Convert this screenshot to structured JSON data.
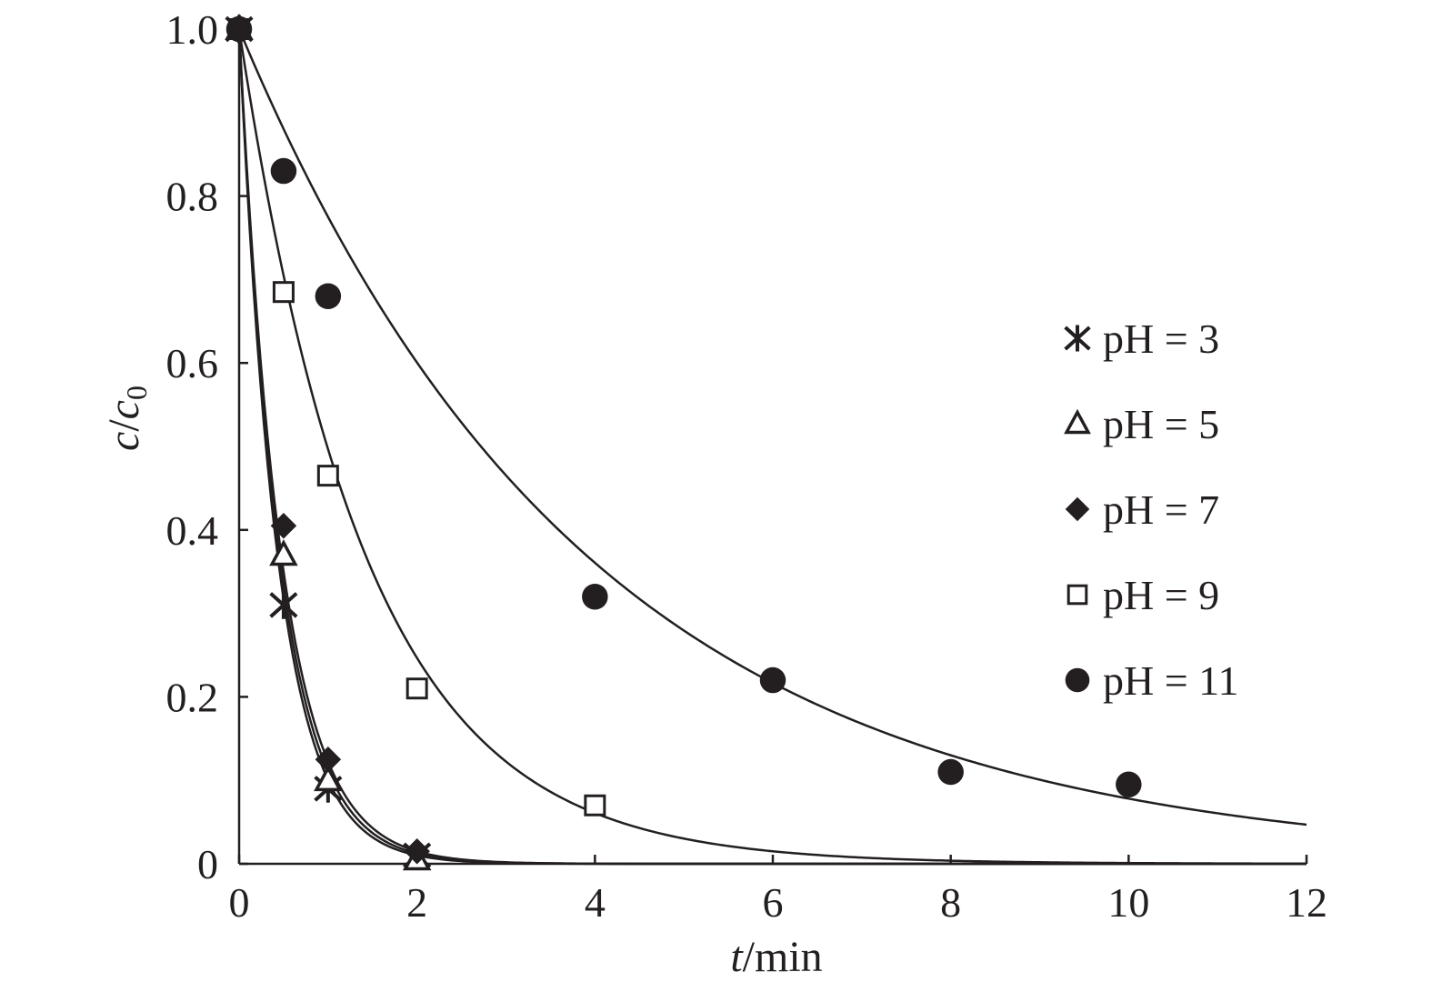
{
  "chart_data": {
    "type": "scatter",
    "title": "",
    "xlabel": {
      "var": "t",
      "unit": "/min"
    },
    "ylabel": {
      "var": "c",
      "slash": "/",
      "var2": "c",
      "sub": "0"
    },
    "xlim": [
      0,
      12
    ],
    "ylim": [
      0,
      1.0
    ],
    "xticks": [
      0,
      2,
      4,
      6,
      8,
      10,
      12
    ],
    "yticks": [
      0,
      0.2,
      0.4,
      0.6,
      0.8,
      1.0
    ],
    "xtick_labels": [
      "0",
      "2",
      "4",
      "6",
      "8",
      "10",
      "12"
    ],
    "ytick_labels": [
      "0",
      "0.2",
      "0.4",
      "0.6",
      "0.8",
      "1.0"
    ],
    "legend_position": "right",
    "grid": false,
    "color": "#231f20",
    "fit_curves": "first-order exponential decay",
    "series": [
      {
        "name": "pH = 3",
        "marker": "asterisk",
        "x": [
          0,
          0.5,
          1,
          2
        ],
        "y": [
          1.0,
          0.31,
          0.09,
          0.01
        ],
        "fit_k": 2.3
      },
      {
        "name": "pH = 5",
        "marker": "triangle-open",
        "x": [
          0,
          0.5,
          1,
          2
        ],
        "y": [
          1.0,
          0.37,
          0.1,
          0.005
        ],
        "fit_k": 2.2
      },
      {
        "name": "pH = 7",
        "marker": "diamond-filled",
        "x": [
          0,
          0.5,
          1,
          2
        ],
        "y": [
          1.0,
          0.405,
          0.125,
          0.015
        ],
        "fit_k": 2.1
      },
      {
        "name": "pH = 9",
        "marker": "square-open",
        "x": [
          0,
          0.5,
          1,
          2,
          4
        ],
        "y": [
          1.0,
          0.685,
          0.465,
          0.21,
          0.07
        ],
        "fit_k": 0.7
      },
      {
        "name": "pH = 11",
        "marker": "circle-filled",
        "x": [
          0,
          0.5,
          1,
          4,
          6,
          8,
          10
        ],
        "y": [
          1.0,
          0.83,
          0.68,
          0.32,
          0.22,
          0.11,
          0.095
        ],
        "fit_k": 0.255
      }
    ]
  }
}
